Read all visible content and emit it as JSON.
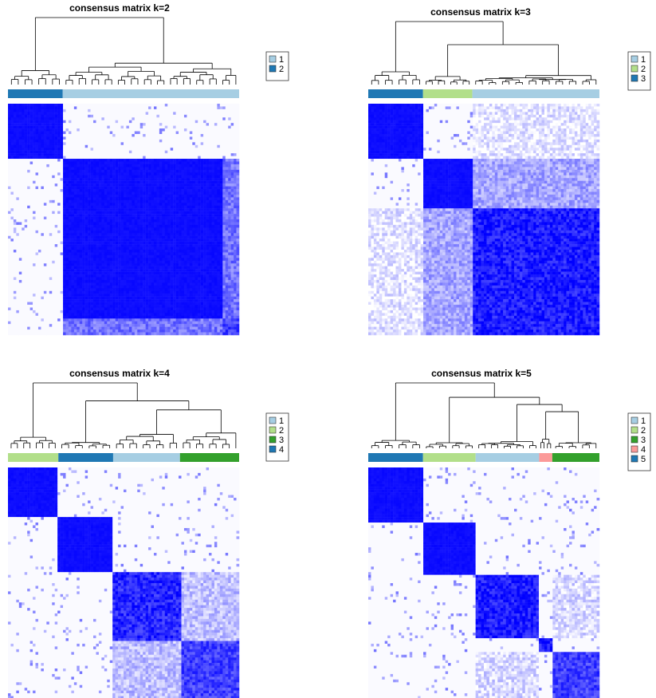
{
  "palette": {
    "light_blue": "#a6cee3",
    "dark_blue": "#1f78b4",
    "light_green": "#b2df8a",
    "dark_green": "#33a02c",
    "pink": "#fb9a99",
    "heat_high": "#0000ff",
    "heat_low": "#ffffff"
  },
  "chart_data": [
    {
      "type": "heatmap",
      "title": "consensus matrix k=2",
      "k": 2,
      "legend": [
        {
          "label": "1",
          "color": "#a6cee3"
        },
        {
          "label": "2",
          "color": "#1f78b4"
        }
      ],
      "column_annotation": [
        {
          "class": "2",
          "count": 50
        },
        {
          "class": "1",
          "count": 161
        }
      ],
      "consensus_blocks": [
        {
          "rows": [
            0,
            50
          ],
          "cols": [
            0,
            50
          ],
          "value": 0.95
        },
        {
          "rows": [
            50,
            195
          ],
          "cols": [
            50,
            195
          ],
          "value": 0.95
        },
        {
          "rows": [
            195,
            211
          ],
          "cols": [
            195,
            211
          ],
          "value": 0.75
        },
        {
          "rows": [
            50,
            195
          ],
          "cols": [
            195,
            211
          ],
          "value": 0.55
        },
        {
          "rows": [
            195,
            211
          ],
          "cols": [
            50,
            195
          ],
          "value": 0.55
        }
      ],
      "background_value": 0.02,
      "value_range": [
        0,
        1
      ]
    },
    {
      "type": "heatmap",
      "title": "consensus matrix k=3",
      "k": 3,
      "legend": [
        {
          "label": "1",
          "color": "#a6cee3"
        },
        {
          "label": "2",
          "color": "#b2df8a"
        },
        {
          "label": "3",
          "color": "#1f78b4"
        }
      ],
      "column_annotation": [
        {
          "class": "3",
          "count": 50
        },
        {
          "class": "2",
          "count": 45
        },
        {
          "class": "1",
          "count": 116
        }
      ],
      "consensus_blocks": [
        {
          "rows": [
            0,
            50
          ],
          "cols": [
            0,
            50
          ],
          "value": 0.95
        },
        {
          "rows": [
            50,
            95
          ],
          "cols": [
            50,
            95
          ],
          "value": 0.95
        },
        {
          "rows": [
            95,
            211
          ],
          "cols": [
            95,
            211
          ],
          "value": 0.9
        },
        {
          "rows": [
            50,
            95
          ],
          "cols": [
            95,
            211
          ],
          "value": 0.35
        },
        {
          "rows": [
            95,
            211
          ],
          "cols": [
            50,
            95
          ],
          "value": 0.35
        },
        {
          "rows": [
            0,
            50
          ],
          "cols": [
            95,
            211
          ],
          "value": 0.1
        },
        {
          "rows": [
            95,
            211
          ],
          "cols": [
            0,
            50
          ],
          "value": 0.1
        }
      ],
      "background_value": 0.02,
      "value_range": [
        0,
        1
      ]
    },
    {
      "type": "heatmap",
      "title": "consensus matrix k=4",
      "k": 4,
      "legend": [
        {
          "label": "1",
          "color": "#a6cee3"
        },
        {
          "label": "2",
          "color": "#b2df8a"
        },
        {
          "label": "3",
          "color": "#33a02c"
        },
        {
          "label": "4",
          "color": "#1f78b4"
        }
      ],
      "column_annotation": [
        {
          "class": "2",
          "count": 46
        },
        {
          "class": "4",
          "count": 50
        },
        {
          "class": "1",
          "count": 61
        },
        {
          "class": "3",
          "count": 54
        }
      ],
      "consensus_blocks": [
        {
          "rows": [
            0,
            46
          ],
          "cols": [
            0,
            46
          ],
          "value": 0.95
        },
        {
          "rows": [
            46,
            96
          ],
          "cols": [
            46,
            96
          ],
          "value": 0.95
        },
        {
          "rows": [
            96,
            157
          ],
          "cols": [
            96,
            157
          ],
          "value": 0.85
        },
        {
          "rows": [
            157,
            211
          ],
          "cols": [
            157,
            211
          ],
          "value": 0.75
        },
        {
          "rows": [
            96,
            157
          ],
          "cols": [
            157,
            211
          ],
          "value": 0.25
        },
        {
          "rows": [
            157,
            211
          ],
          "cols": [
            96,
            157
          ],
          "value": 0.25
        }
      ],
      "background_value": 0.02,
      "value_range": [
        0,
        1
      ]
    },
    {
      "type": "heatmap",
      "title": "consensus matrix k=5",
      "k": 5,
      "legend": [
        {
          "label": "1",
          "color": "#a6cee3"
        },
        {
          "label": "2",
          "color": "#b2df8a"
        },
        {
          "label": "3",
          "color": "#33a02c"
        },
        {
          "label": "4",
          "color": "#fb9a99"
        },
        {
          "label": "5",
          "color": "#1f78b4"
        }
      ],
      "column_annotation": [
        {
          "class": "5",
          "count": 50
        },
        {
          "class": "2",
          "count": 48
        },
        {
          "class": "1",
          "count": 58
        },
        {
          "class": "4",
          "count": 12
        },
        {
          "class": "3",
          "count": 43
        }
      ],
      "consensus_blocks": [
        {
          "rows": [
            0,
            50
          ],
          "cols": [
            0,
            50
          ],
          "value": 0.95
        },
        {
          "rows": [
            50,
            98
          ],
          "cols": [
            50,
            98
          ],
          "value": 0.95
        },
        {
          "rows": [
            98,
            156
          ],
          "cols": [
            98,
            156
          ],
          "value": 0.9
        },
        {
          "rows": [
            156,
            168
          ],
          "cols": [
            156,
            168
          ],
          "value": 0.9
        },
        {
          "rows": [
            168,
            211
          ],
          "cols": [
            168,
            211
          ],
          "value": 0.75
        },
        {
          "rows": [
            98,
            156
          ],
          "cols": [
            168,
            211
          ],
          "value": 0.15
        },
        {
          "rows": [
            168,
            211
          ],
          "cols": [
            98,
            156
          ],
          "value": 0.15
        }
      ],
      "background_value": 0.02,
      "value_range": [
        0,
        1
      ]
    }
  ]
}
